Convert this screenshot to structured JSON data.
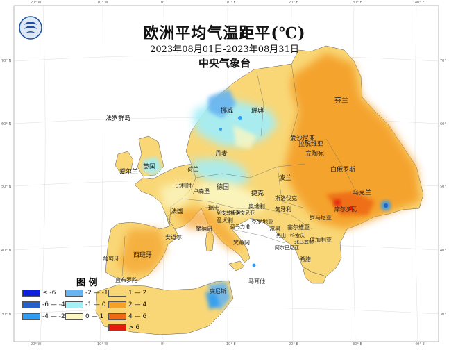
{
  "header": {
    "title": "欧洲平均气温距平(℃)",
    "date_range": "2023年08月01日-2023年08月31日",
    "agency": "中央气象台"
  },
  "legend": {
    "title": "图 例",
    "items": [
      {
        "label": "≤ -6",
        "color": "#0b1fdc"
      },
      {
        "label": "-6 — -4",
        "color": "#2561c6"
      },
      {
        "label": "-4 — -2",
        "color": "#2e9cf0"
      },
      {
        "label": "-2 — -1",
        "color": "#66b4f2"
      },
      {
        "label": "-1 — 0",
        "color": "#a4eef6"
      },
      {
        "label": "0 — 1",
        "color": "#fbf7c2"
      },
      {
        "label": "1 — 2",
        "color": "#f9d777"
      },
      {
        "label": "2 — 4",
        "color": "#f4a12a"
      },
      {
        "label": "4 — 6",
        "color": "#ee6a13"
      },
      {
        "label": "> 6",
        "color": "#e61a10"
      }
    ]
  },
  "map_labels": [
    {
      "name": "label-finland",
      "text": "芬兰"
    },
    {
      "name": "label-norway",
      "text": "挪威"
    },
    {
      "name": "label-sweden",
      "text": "瑞典"
    },
    {
      "name": "label-faroe",
      "text": "法罗群岛"
    },
    {
      "name": "label-estonia",
      "text": "爱沙尼亚"
    },
    {
      "name": "label-latvia",
      "text": "拉脱维亚"
    },
    {
      "name": "label-lithuania",
      "text": "立陶宛"
    },
    {
      "name": "label-denmark",
      "text": "丹麦"
    },
    {
      "name": "label-belarus",
      "text": "白俄罗斯"
    },
    {
      "name": "label-uk",
      "text": "英国"
    },
    {
      "name": "label-ireland",
      "text": "爱尔兰"
    },
    {
      "name": "label-netherlands",
      "text": "荷兰"
    },
    {
      "name": "label-belgium",
      "text": "比利时"
    },
    {
      "name": "label-luxembourg",
      "text": "卢森堡"
    },
    {
      "name": "label-germany",
      "text": "德国"
    },
    {
      "name": "label-poland",
      "text": "波兰"
    },
    {
      "name": "label-ukraine",
      "text": "乌克兰"
    },
    {
      "name": "label-czech",
      "text": "捷克"
    },
    {
      "name": "label-slovakia",
      "text": "斯洛伐克"
    },
    {
      "name": "label-moldova",
      "text": "摩尔多瓦"
    },
    {
      "name": "label-france",
      "text": "法国"
    },
    {
      "name": "label-switzerland",
      "text": "瑞士"
    },
    {
      "name": "label-austria",
      "text": "奥地利"
    },
    {
      "name": "label-hungary",
      "text": "匈牙利"
    },
    {
      "name": "label-liechtenstein",
      "text": "列支敦士登"
    },
    {
      "name": "label-slovenia",
      "text": "斯洛文尼亚"
    },
    {
      "name": "label-romania",
      "text": "罗马尼亚"
    },
    {
      "name": "label-italy",
      "text": "意大利"
    },
    {
      "name": "label-monaco",
      "text": "摩纳哥"
    },
    {
      "name": "label-croatia",
      "text": "克罗地亚"
    },
    {
      "name": "label-serbia",
      "text": "塞尔维亚"
    },
    {
      "name": "label-sanmarino",
      "text": "圣马力诺"
    },
    {
      "name": "label-bosnia",
      "text": "波黑"
    },
    {
      "name": "label-montenegro",
      "text": "黑山"
    },
    {
      "name": "label-kosovo",
      "text": "科索沃"
    },
    {
      "name": "label-bulgaria",
      "text": "保加利亚"
    },
    {
      "name": "label-andorra",
      "text": "安道尔"
    },
    {
      "name": "label-vatican",
      "text": "梵蒂冈"
    },
    {
      "name": "label-north-macedonia",
      "text": "北马其顿"
    },
    {
      "name": "label-albania",
      "text": "阿尔巴尼亚"
    },
    {
      "name": "label-spain",
      "text": "西班牙"
    },
    {
      "name": "label-portugal",
      "text": "葡萄牙"
    },
    {
      "name": "label-greece",
      "text": "希腊"
    },
    {
      "name": "label-gibraltar",
      "text": "直布罗陀"
    },
    {
      "name": "label-malta",
      "text": "马耳他"
    },
    {
      "name": "label-tunisia",
      "text": "突尼斯"
    }
  ],
  "axis_labels": {
    "top": [
      "20° W",
      "10° W",
      "0°",
      "10° E",
      "20° E",
      "30° E",
      "40° E"
    ],
    "bottom": [
      "20° W",
      "10° W",
      "0°",
      "10° E",
      "20° E",
      "30° E",
      "40° E"
    ],
    "left": [
      "70° N",
      "60° N",
      "50° N",
      "40° N",
      "30° N"
    ],
    "right": [
      "70°",
      "60°",
      "50°",
      "40°",
      "30°"
    ]
  }
}
